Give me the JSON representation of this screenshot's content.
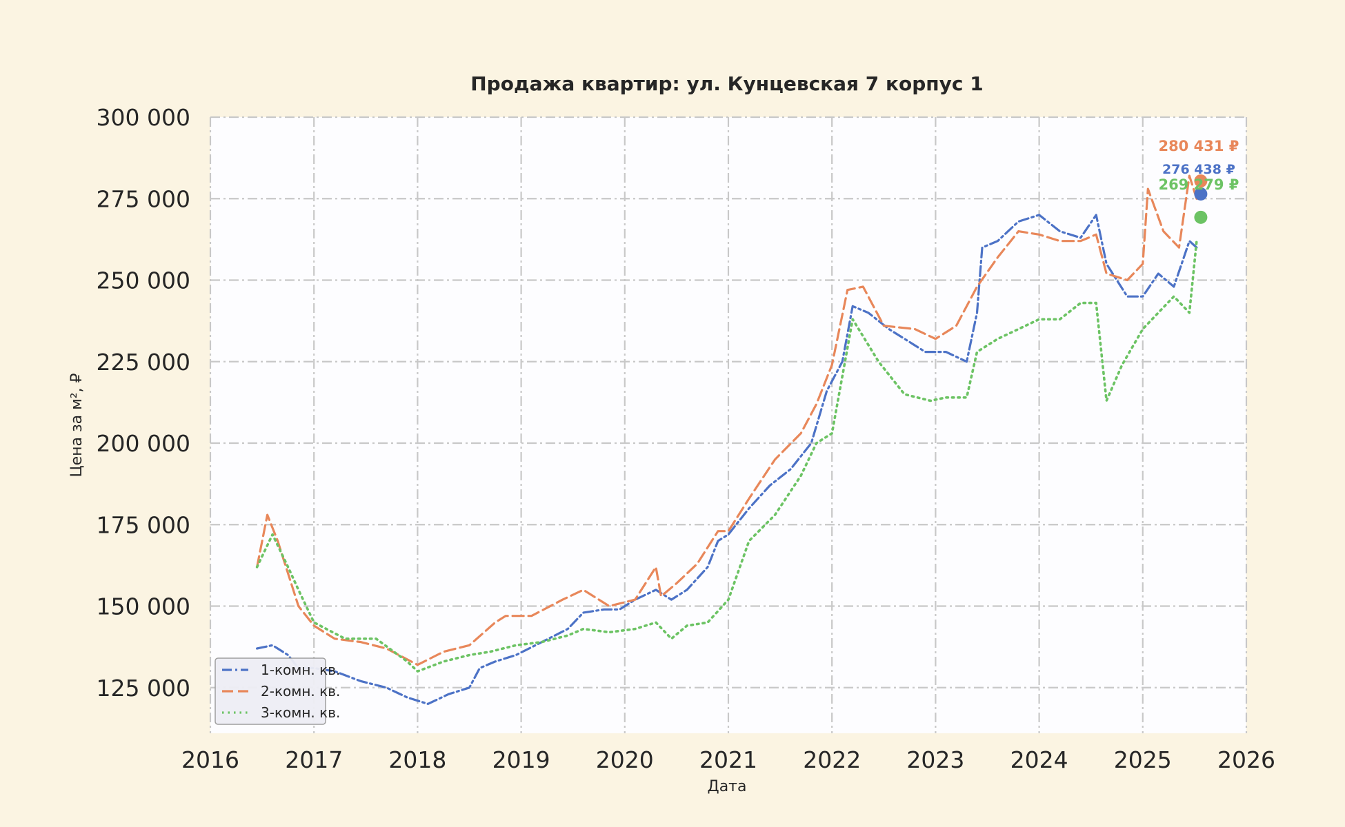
{
  "chart_data": {
    "type": "line",
    "title": "Продажа квартир: ул. Кунцевская 7 корпус 1",
    "xlabel": "Дата",
    "ylabel": "Цена за м², ₽",
    "xlim": [
      2016,
      2026
    ],
    "ylim": [
      111000,
      300000
    ],
    "x_ticks": [
      2016,
      2017,
      2018,
      2019,
      2020,
      2021,
      2022,
      2023,
      2024,
      2025,
      2026
    ],
    "x_tick_labels": [
      "2016",
      "2017",
      "2018",
      "2019",
      "2020",
      "2021",
      "2022",
      "2023",
      "2024",
      "2025",
      "2026"
    ],
    "y_ticks": [
      125000,
      150000,
      175000,
      200000,
      225000,
      250000,
      275000,
      300000
    ],
    "y_tick_labels": [
      "125 000",
      "150 000",
      "175 000",
      "200 000",
      "225 000",
      "250 000",
      "275 000",
      "300 000"
    ],
    "grid": true,
    "legend_position": "lower-left",
    "colors": {
      "background": "#fbf4e2",
      "plot_background": "#fdfdff",
      "grid": "#c8c8c8",
      "series_1": "#4c72c6",
      "series_2": "#e8875a",
      "series_3": "#6cc364"
    },
    "series": [
      {
        "name": "1-комн. кв.",
        "line_style": "dash-dot",
        "color": "#4c72c6",
        "x": [
          2016.45,
          2016.6,
          2016.75,
          2016.85,
          2017.0,
          2017.2,
          2017.45,
          2017.7,
          2017.9,
          2018.1,
          2018.3,
          2018.5,
          2018.6,
          2018.75,
          2018.95,
          2019.2,
          2019.45,
          2019.6,
          2019.8,
          2019.95,
          2020.1,
          2020.3,
          2020.45,
          2020.6,
          2020.8,
          2020.9,
          2021.0,
          2021.2,
          2021.4,
          2021.6,
          2021.8,
          2021.95,
          2022.1,
          2022.2,
          2022.35,
          2022.55,
          2022.8,
          2022.9,
          2023.1,
          2023.3,
          2023.4,
          2023.45,
          2023.6,
          2023.8,
          2024.0,
          2024.2,
          2024.4,
          2024.55,
          2024.65,
          2024.85,
          2025.0,
          2025.15,
          2025.3,
          2025.45,
          2025.52
        ],
        "y": [
          137000,
          138000,
          135000,
          131000,
          131000,
          130000,
          127000,
          125000,
          122000,
          120000,
          123000,
          125000,
          131000,
          133000,
          135000,
          139000,
          143000,
          148000,
          149000,
          149000,
          152000,
          155000,
          152000,
          155000,
          162000,
          170000,
          172000,
          180000,
          187000,
          192000,
          200000,
          216000,
          225000,
          242000,
          240000,
          235000,
          230000,
          228000,
          228000,
          225000,
          240000,
          260000,
          262000,
          268000,
          270000,
          265000,
          263000,
          270000,
          255000,
          245000,
          245000,
          252000,
          248000,
          262000,
          260000
        ]
      },
      {
        "name": "2-комн. кв.",
        "line_style": "dashed",
        "color": "#e8875a",
        "x": [
          2016.45,
          2016.55,
          2016.65,
          2016.85,
          2017.0,
          2017.2,
          2017.45,
          2017.7,
          2018.0,
          2018.25,
          2018.5,
          2018.75,
          2018.85,
          2019.1,
          2019.4,
          2019.6,
          2019.85,
          2020.1,
          2020.3,
          2020.35,
          2020.5,
          2020.7,
          2020.9,
          2021.0,
          2021.2,
          2021.45,
          2021.7,
          2021.85,
          2022.0,
          2022.15,
          2022.3,
          2022.5,
          2022.8,
          2023.0,
          2023.2,
          2023.4,
          2023.6,
          2023.8,
          2024.0,
          2024.2,
          2024.4,
          2024.55,
          2024.65,
          2024.85,
          2025.0,
          2025.05,
          2025.2,
          2025.35,
          2025.45,
          2025.52
        ],
        "y": [
          162000,
          178000,
          170000,
          150000,
          144000,
          140000,
          139000,
          137000,
          132000,
          136000,
          138000,
          145000,
          147000,
          147000,
          152000,
          155000,
          150000,
          152000,
          162000,
          153000,
          157000,
          163000,
          173000,
          173000,
          183000,
          195000,
          203000,
          212000,
          224000,
          247000,
          248000,
          236000,
          235000,
          232000,
          236000,
          248000,
          257000,
          265000,
          264000,
          262000,
          262000,
          264000,
          252000,
          250000,
          255000,
          278000,
          265000,
          260000,
          282000,
          275000
        ]
      },
      {
        "name": "3-комн. кв.",
        "line_style": "dotted",
        "color": "#6cc364",
        "x": [
          2016.45,
          2016.6,
          2016.75,
          2016.85,
          2017.0,
          2017.3,
          2017.6,
          2017.9,
          2018.0,
          2018.25,
          2018.5,
          2018.7,
          2018.95,
          2019.2,
          2019.45,
          2019.6,
          2019.85,
          2020.1,
          2020.3,
          2020.45,
          2020.6,
          2020.8,
          2021.0,
          2021.2,
          2021.45,
          2021.7,
          2021.85,
          2022.0,
          2022.2,
          2022.45,
          2022.7,
          2022.95,
          2023.1,
          2023.3,
          2023.4,
          2023.6,
          2023.8,
          2024.0,
          2024.2,
          2024.4,
          2024.55,
          2024.65,
          2024.8,
          2025.0,
          2025.15,
          2025.3,
          2025.45,
          2025.52
        ],
        "y": [
          162000,
          172000,
          162000,
          155000,
          145000,
          140000,
          140000,
          133000,
          130000,
          133000,
          135000,
          136000,
          138000,
          139000,
          141000,
          143000,
          142000,
          143000,
          145000,
          140000,
          144000,
          145000,
          152000,
          170000,
          178000,
          190000,
          200000,
          203000,
          238000,
          225000,
          215000,
          213000,
          214000,
          214000,
          228000,
          232000,
          235000,
          238000,
          238000,
          243000,
          243000,
          213000,
          224000,
          235000,
          240000,
          245000,
          240000,
          262000
        ]
      }
    ],
    "last_points": [
      {
        "x": 2025.56,
        "y": 280431,
        "label": "280 431 ₽",
        "color": "#e8875a"
      },
      {
        "x": 2025.56,
        "y": 276438,
        "label": "276 438 ₽",
        "color": "#4c72c6"
      },
      {
        "x": 2025.56,
        "y": 269279,
        "label": "269 279 ₽",
        "color": "#6cc364"
      }
    ]
  }
}
